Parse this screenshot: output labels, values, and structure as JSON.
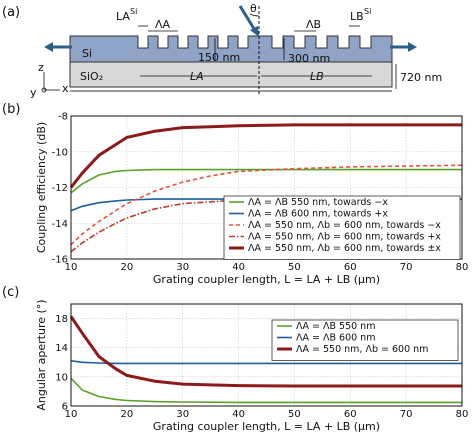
{
  "schematic": {
    "panel_label": "(a)",
    "si_label": "Si",
    "sio2_label": "SiO₂",
    "etch_depth": "150 nm",
    "si_thickness": "300 nm",
    "box_thickness": "720 nm",
    "theta": "θ",
    "lambda_a": "ΛA",
    "lambda_b": "ΛB",
    "la_si": "LA",
    "lb_si": "LB",
    "la_sup": "Si",
    "lb_sup": "Si",
    "len_a": "LA",
    "len_b": "LB",
    "axis_z": "z",
    "axis_y": "y",
    "axis_x": "x",
    "colors": {
      "si": "#8fa3c7",
      "sio2": "#d8d8d8",
      "arrow": "#2e5f8a"
    }
  },
  "chart_data": [
    {
      "panel_label": "(b)",
      "type": "line",
      "xlabel": "Grating coupler length, L = LA + LB (μm)",
      "ylabel": "Coupling efficiency (dB)",
      "xlim": [
        10,
        80
      ],
      "ylim": [
        -16,
        -8
      ],
      "xticks": [
        10,
        20,
        30,
        40,
        50,
        60,
        70,
        80
      ],
      "yticks": [
        -16,
        -14,
        -12,
        -10,
        -8
      ],
      "grid": true,
      "legend_position": "bottom-right",
      "series": [
        {
          "name": "ΛA = ΛB 550 nm, towards −x",
          "color": "#5aa02c",
          "dash": "solid",
          "width": 1.6,
          "x": [
            10,
            12,
            15,
            18,
            20,
            25,
            30,
            40,
            50,
            60,
            70,
            80
          ],
          "y": [
            -12.3,
            -11.8,
            -11.3,
            -11.1,
            -11.05,
            -11.0,
            -11.0,
            -11.0,
            -11.0,
            -11.0,
            -11.0,
            -11.0
          ]
        },
        {
          "name": "ΛA = ΛB 600 nm, towards +x",
          "color": "#1f5fa0",
          "dash": "solid",
          "width": 1.6,
          "x": [
            10,
            12,
            15,
            18,
            20,
            25,
            30,
            40,
            50,
            60,
            70,
            80
          ],
          "y": [
            -13.3,
            -13.05,
            -12.85,
            -12.75,
            -12.7,
            -12.65,
            -12.65,
            -12.65,
            -12.65,
            -12.65,
            -12.65,
            -12.65
          ]
        },
        {
          "name": "ΛA = 550 nm, Λb = 600 nm, towards −x",
          "color": "#e8503a",
          "dash": "4,3",
          "width": 1.6,
          "x": [
            10,
            12,
            15,
            18,
            20,
            25,
            30,
            35,
            40,
            50,
            60,
            70,
            80
          ],
          "y": [
            -15.2,
            -14.6,
            -13.9,
            -13.3,
            -12.9,
            -12.2,
            -11.7,
            -11.35,
            -11.1,
            -10.95,
            -10.85,
            -10.8,
            -10.75
          ]
        },
        {
          "name": "ΛA = 550 nm, Λb = 600 nm, towards +x",
          "color": "#c0392b",
          "dash": "6,2,1.5,2",
          "width": 1.6,
          "x": [
            10,
            12,
            15,
            18,
            20,
            25,
            30,
            35,
            40,
            50,
            60,
            70,
            80
          ],
          "y": [
            -15.6,
            -15.1,
            -14.5,
            -14.0,
            -13.7,
            -13.2,
            -12.9,
            -12.8,
            -12.7,
            -12.65,
            -12.6,
            -12.6,
            -12.55
          ]
        },
        {
          "name": "ΛA = 550 nm, Λb = 600 nm, towards ±x",
          "color": "#8b1a1a",
          "dash": "solid",
          "width": 3,
          "x": [
            10,
            12,
            15,
            18,
            20,
            25,
            30,
            35,
            40,
            50,
            60,
            70,
            80
          ],
          "y": [
            -12.0,
            -11.2,
            -10.2,
            -9.6,
            -9.2,
            -8.85,
            -8.65,
            -8.6,
            -8.55,
            -8.5,
            -8.5,
            -8.5,
            -8.5
          ]
        }
      ]
    },
    {
      "panel_label": "(c)",
      "type": "line",
      "xlabel": "Grating coupler length, L = LA + LB (μm)",
      "ylabel": "Angular aperture (°)",
      "xlim": [
        10,
        80
      ],
      "ylim": [
        6,
        20
      ],
      "xticks": [
        10,
        20,
        30,
        40,
        50,
        60,
        70,
        80
      ],
      "yticks": [
        6,
        10,
        14,
        18
      ],
      "grid": true,
      "legend_position": "top-right",
      "series": [
        {
          "name": "ΛA = ΛB 550 nm",
          "color": "#5aa02c",
          "dash": "solid",
          "width": 1.6,
          "x": [
            10,
            12,
            15,
            18,
            20,
            25,
            30,
            40,
            50,
            60,
            70,
            80
          ],
          "y": [
            9.8,
            8.2,
            7.3,
            6.9,
            6.75,
            6.6,
            6.55,
            6.5,
            6.5,
            6.5,
            6.5,
            6.5
          ]
        },
        {
          "name": "ΛA = ΛB 600 nm",
          "color": "#1f5fa0",
          "dash": "solid",
          "width": 1.6,
          "x": [
            10,
            12,
            15,
            18,
            20,
            25,
            30,
            40,
            50,
            60,
            70,
            80
          ],
          "y": [
            12.2,
            12.0,
            11.9,
            11.85,
            11.85,
            11.85,
            11.85,
            11.85,
            11.85,
            11.85,
            11.85,
            11.85
          ]
        },
        {
          "name": "ΛA = 550 nm, Λb = 600 nm",
          "color": "#8b1a1a",
          "dash": "solid",
          "width": 3,
          "x": [
            10,
            12,
            15,
            18,
            20,
            25,
            30,
            40,
            50,
            60,
            70,
            80
          ],
          "y": [
            18.3,
            16.0,
            12.8,
            11.1,
            10.2,
            9.4,
            9.0,
            8.8,
            8.75,
            8.75,
            8.75,
            8.75
          ]
        }
      ]
    }
  ]
}
